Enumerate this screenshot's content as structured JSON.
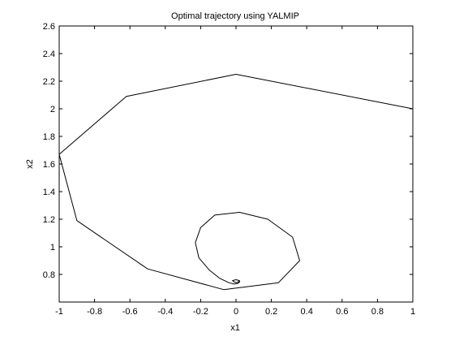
{
  "chart_data": {
    "type": "line",
    "title": "Optimal trajectory using YALMIP",
    "xlabel": "x1",
    "ylabel": "x2",
    "xlim": [
      -1,
      1
    ],
    "ylim": [
      0.6,
      2.6
    ],
    "xticks": [
      "-1",
      "-0.8",
      "-0.6",
      "-0.4",
      "-0.2",
      "0",
      "0.2",
      "0.4",
      "0.6",
      "0.8",
      "1"
    ],
    "yticks": [
      "0.8",
      "1",
      "1.2",
      "1.4",
      "1.6",
      "1.8",
      "2",
      "2.2",
      "2.4",
      "2.6"
    ],
    "grid": false,
    "legend": "none",
    "line_color": "#000000",
    "series": [
      {
        "x": [
          1.0,
          0.0,
          -0.62,
          -1.0,
          -0.9,
          -0.5,
          -0.07,
          0.24,
          0.36,
          0.32,
          0.18,
          0.02,
          -0.12,
          -0.2,
          -0.23,
          -0.21,
          -0.15,
          -0.09,
          -0.04,
          -0.01,
          0.01,
          0.02,
          0.02,
          0.0,
          -0.02,
          -0.01,
          0.01,
          0.02,
          0.01
        ],
        "y": [
          2.0,
          2.25,
          2.09,
          1.67,
          1.19,
          0.84,
          0.69,
          0.74,
          0.9,
          1.07,
          1.2,
          1.25,
          1.23,
          1.14,
          1.03,
          0.92,
          0.83,
          0.77,
          0.74,
          0.73,
          0.735,
          0.745,
          0.755,
          0.762,
          0.755,
          0.745,
          0.74,
          0.745,
          0.75
        ]
      }
    ]
  }
}
